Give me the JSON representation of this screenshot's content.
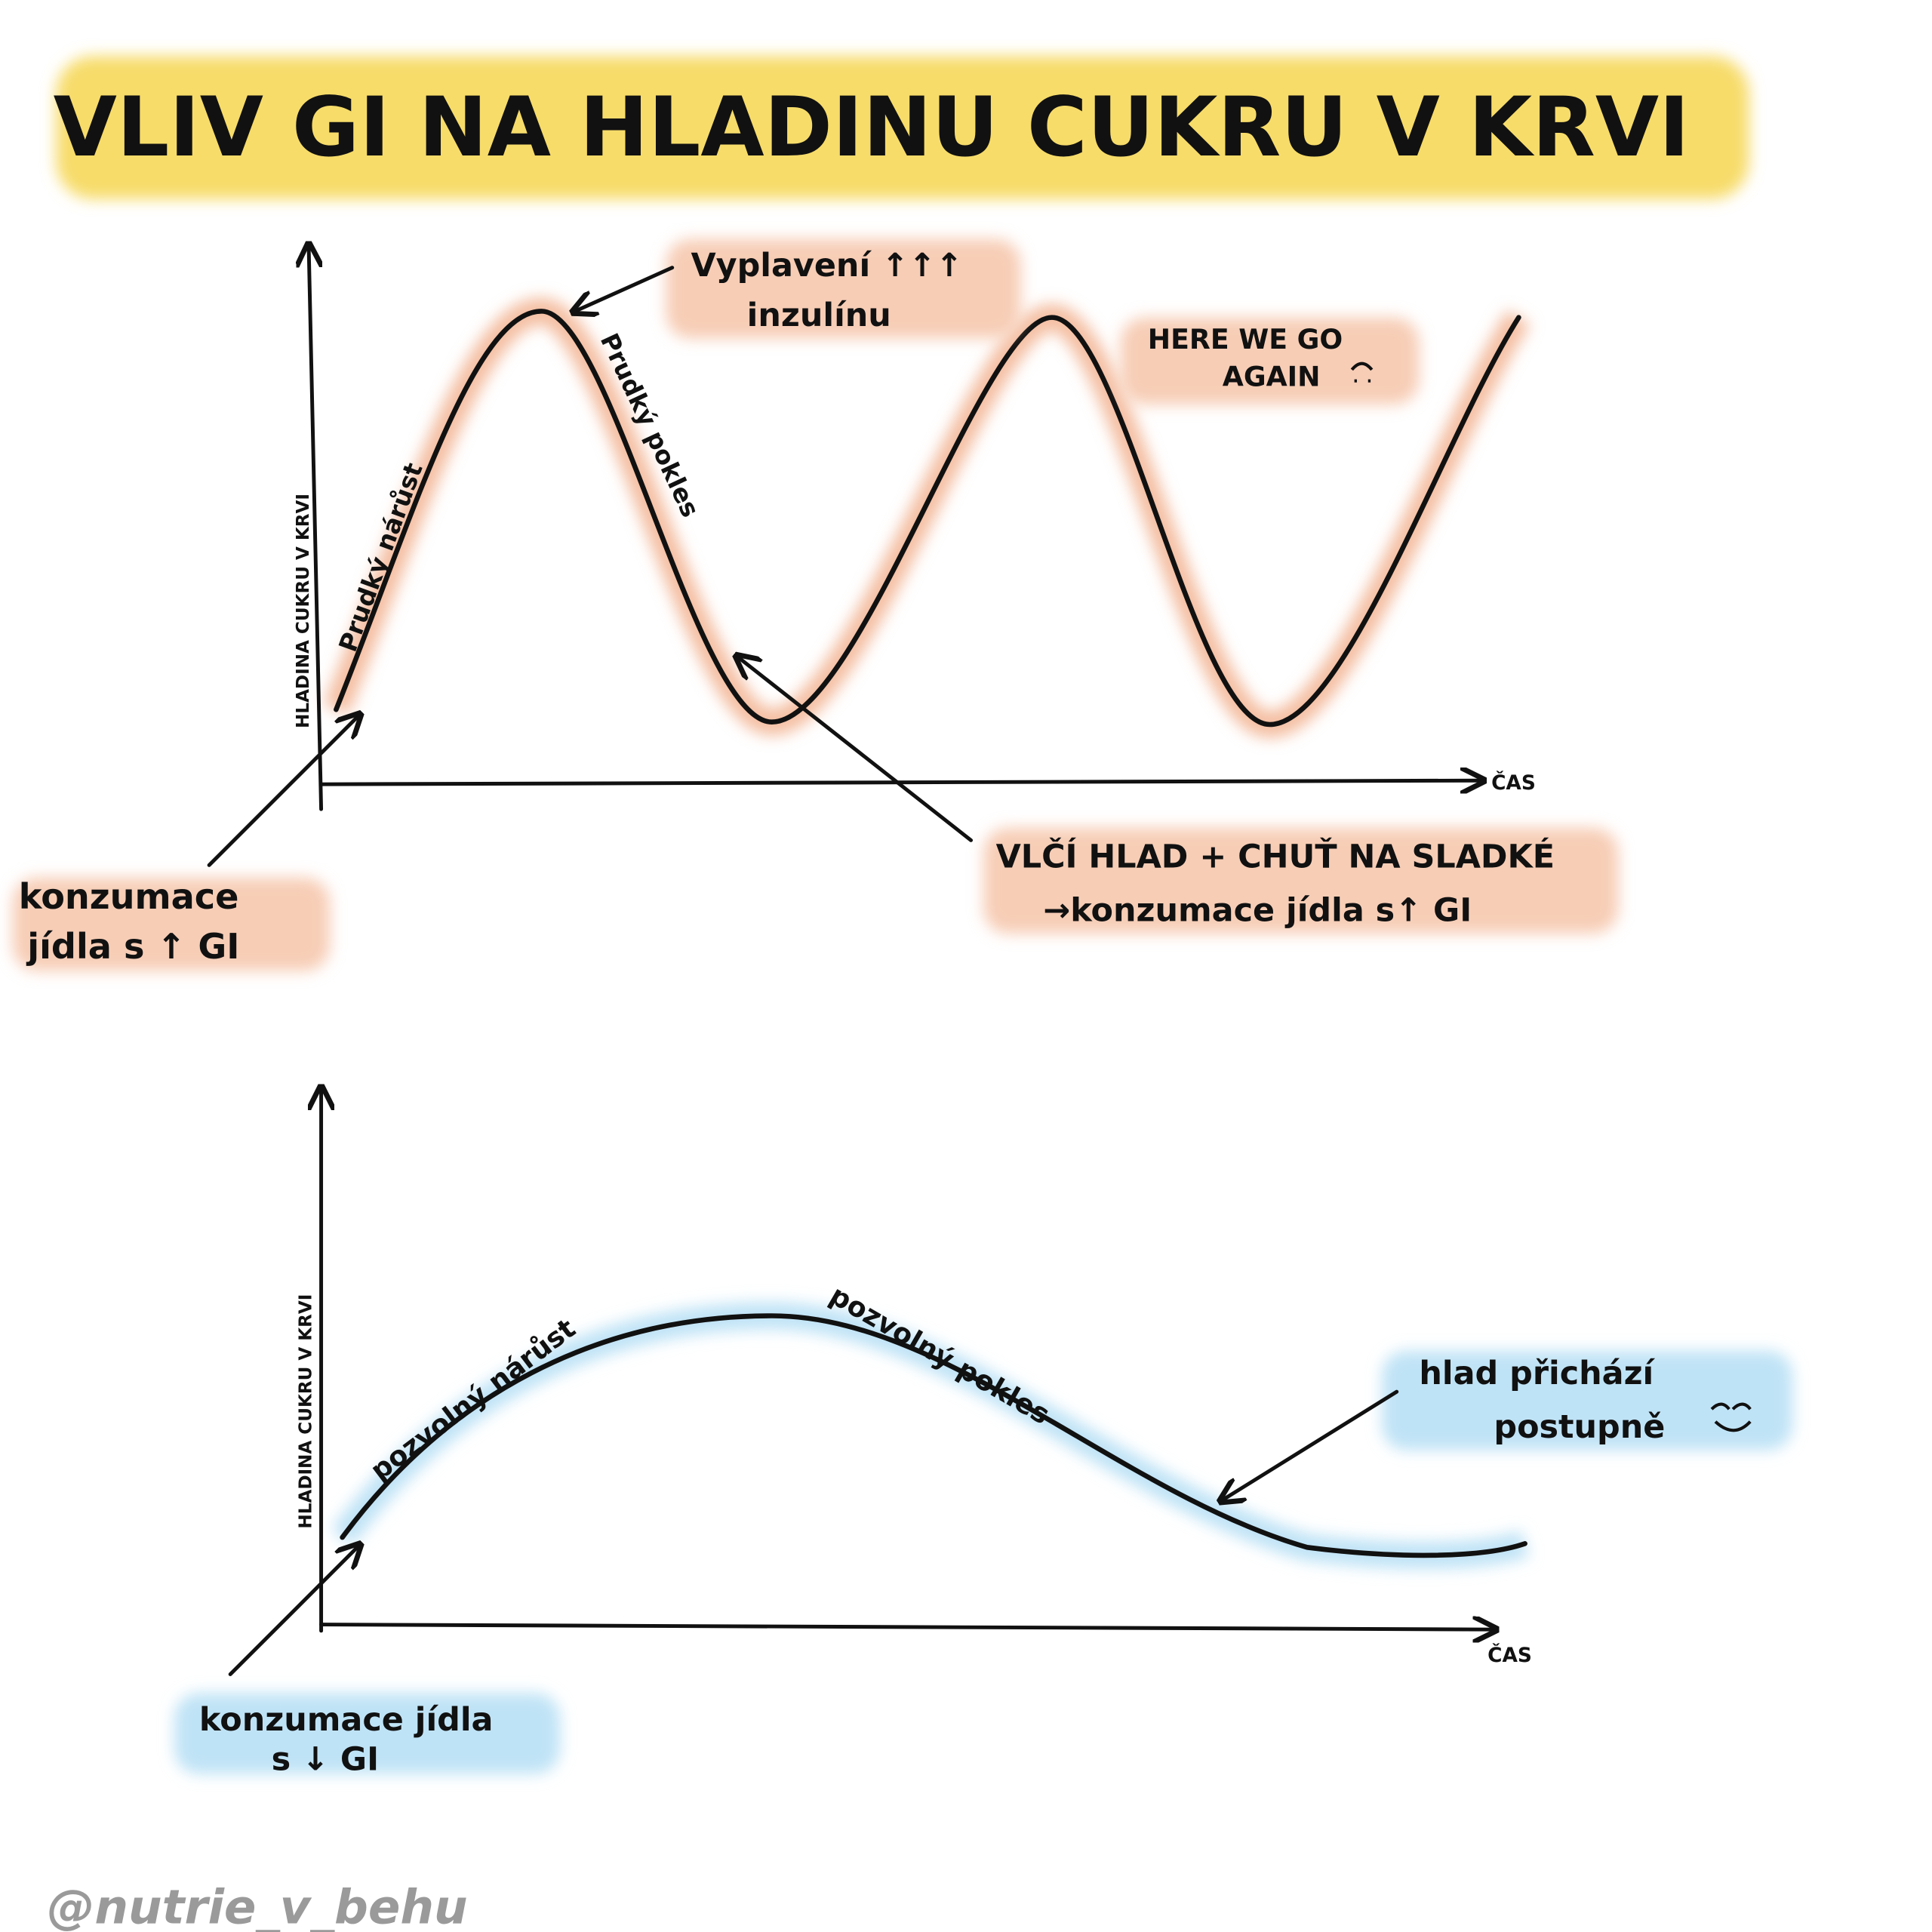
{
  "header": {
    "title": "VLIV GI NA HLADINU CUKRU V KRVI"
  },
  "charts": [
    {
      "y_axis_label": "HLADINA CUKRU V KRVI",
      "x_axis_label": "ČAS",
      "rise_label": "Prudký nárůst",
      "fall_label": "Prudký pokles",
      "peak_note": [
        "Vyplavení ↑↑↑",
        "inzulínu"
      ],
      "repeat_note": [
        "HERE WE GO",
        "AGAIN"
      ],
      "start_note": [
        "konzumace",
        "jídla s ↑ GI"
      ],
      "trough_note": [
        "VLČÍ HLAD + CHUŤ NA SLADKÉ",
        "→konzumace jídla s↑ GI"
      ]
    },
    {
      "y_axis_label": "HLADINA CUKRU V KRVI",
      "x_axis_label": "ČAS",
      "rise_label": "pozvolný nárůst",
      "fall_label": "pozvolný pokles",
      "end_note": [
        "hlad přichází",
        "postupně"
      ],
      "start_note": [
        "konzumace jídla",
        "s ↓ GI"
      ]
    }
  ],
  "signature": "@nutrie_v_behu"
}
